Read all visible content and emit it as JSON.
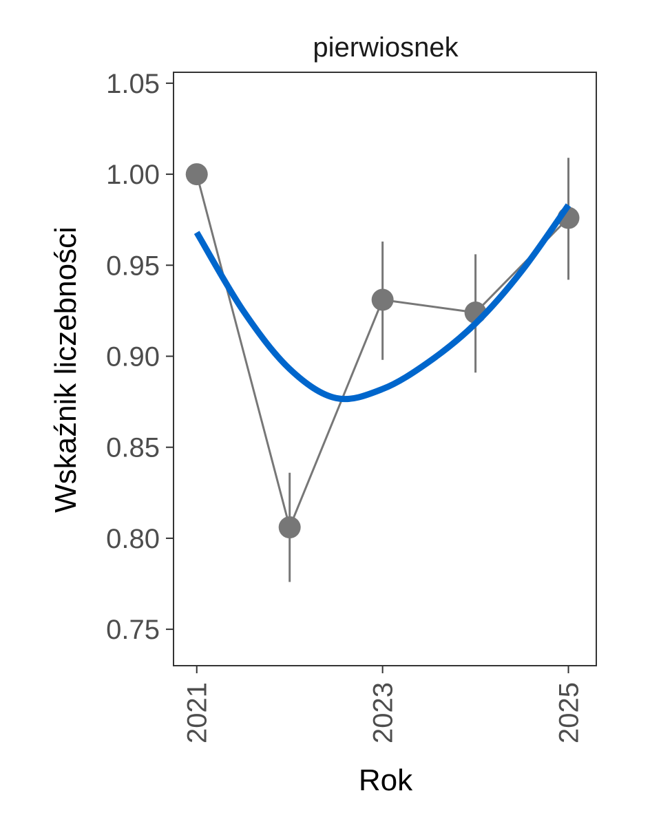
{
  "chart_data": {
    "type": "line",
    "title": "pierwiosnek",
    "xlabel": "Rok",
    "ylabel": "Wskaźnik liczebności",
    "x": [
      2021,
      2022,
      2023,
      2024,
      2025
    ],
    "xlim": [
      2020.75,
      2025.3
    ],
    "x_ticks": [
      "2021",
      "2023",
      "2025"
    ],
    "ylim": [
      0.73,
      1.056
    ],
    "y_ticks": [
      "0.75",
      "0.80",
      "0.85",
      "0.90",
      "0.95",
      "1.00",
      "1.05"
    ],
    "grid": false,
    "legend": "none",
    "series": [
      {
        "kind": "points-with-errorbars",
        "color": "#777777",
        "values": [
          1.0,
          0.806,
          0.931,
          0.924,
          0.976
        ],
        "lower": [
          1.0,
          0.776,
          0.898,
          0.891,
          0.942
        ],
        "upper": [
          1.0,
          0.836,
          0.963,
          0.956,
          1.009
        ]
      },
      {
        "kind": "smooth-trend",
        "color": "#0066cc",
        "x": [
          2021,
          2021.5,
          2022,
          2022.5,
          2023,
          2023.5,
          2024,
          2024.5,
          2025
        ],
        "values": [
          0.968,
          0.925,
          0.893,
          0.877,
          0.882,
          0.897,
          0.918,
          0.947,
          0.983
        ]
      }
    ]
  }
}
